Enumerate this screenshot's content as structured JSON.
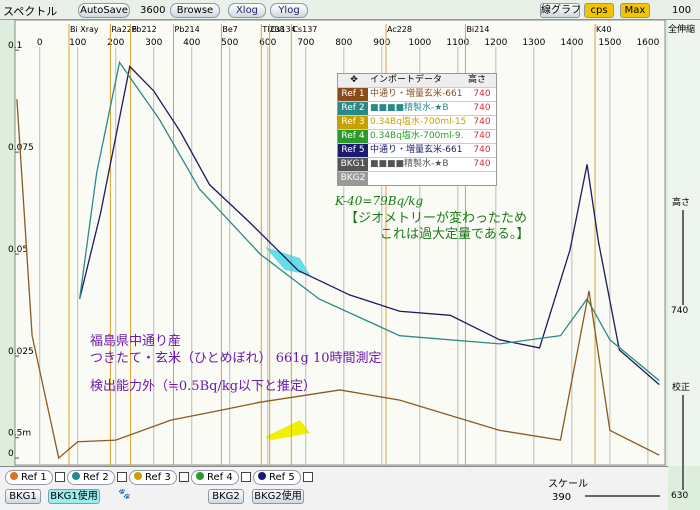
{
  "toolbar": {
    "title": "スペクトル",
    "autosave": "AutoSave",
    "time": 3600,
    "browse": "Browse",
    "xlog": "Xlog",
    "ylog": "Ylog",
    "graph_mode": "線グラフ",
    "unit": "cps",
    "max": "Max",
    "max_value": 100
  },
  "chart": {
    "type": "line",
    "xlim": [
      -65,
      1645
    ],
    "xticks": [
      0,
      100,
      200,
      300,
      400,
      500,
      600,
      700,
      800,
      900,
      1000,
      1100,
      1200,
      1300,
      1400,
      1500,
      1600
    ],
    "ylim": [
      -0.0017,
      0.1074
    ],
    "yticks": [
      0,
      {
        "value": 0.005,
        "label": "0.5m"
      },
      0.025,
      0.05,
      0.075,
      0.1
    ],
    "nuclides": [
      {
        "name": "Bi Xray",
        "energy": 77
      },
      {
        "name": "Ra226",
        "energy": 186
      },
      {
        "name": "Pb212",
        "energy": 239
      },
      {
        "name": "Pb214",
        "energy": 352
      },
      {
        "name": "Be7",
        "energy": 478
      },
      {
        "name": "Tl208",
        "energy": 583
      },
      {
        "name": "Cs134",
        "energy": 605
      },
      {
        "name": "Cs137",
        "energy": 662
      },
      {
        "name": "Ac228",
        "energy": 911
      },
      {
        "name": "Bi214",
        "energy": 1120
      },
      {
        "name": "K40",
        "energy": 1461
      }
    ],
    "series": [
      {
        "color": "#1c1c5e",
        "x": [
          105,
          160,
          237,
          300,
          370,
          447,
          550,
          680,
          815,
          947,
          1080,
          1210,
          1315,
          1395,
          1440,
          1470,
          1525,
          1630
        ],
        "values": [
          0.039,
          0.06,
          0.096,
          0.09,
          0.08,
          0.067,
          0.058,
          0.046,
          0.04,
          0.036,
          0.035,
          0.029,
          0.027,
          0.051,
          0.072,
          0.053,
          0.0265,
          0.018
        ]
      },
      {
        "color": "#2a8a8a",
        "x": [
          105,
          150,
          210,
          315,
          420,
          580,
          735,
          947,
          1210,
          1370,
          1440,
          1500,
          1630
        ],
        "values": [
          0.039,
          0.07,
          0.097,
          0.083,
          0.066,
          0.05,
          0.039,
          0.03,
          0.028,
          0.03,
          0.039,
          0.029,
          0.019
        ]
      },
      {
        "color": "#8a5a20",
        "x": [
          -60,
          -20,
          50,
          100,
          200,
          345,
          475,
          580,
          790,
          947,
          1210,
          1370,
          1445,
          1500,
          1630
        ],
        "values": [
          0.088,
          0.03,
          0.0,
          0.004,
          0.0044,
          0.0093,
          0.0117,
          0.0137,
          0.0167,
          0.0142,
          0.0068,
          0.0044,
          0.041,
          0.0068,
          0.0007
        ]
      }
    ],
    "annotations": {
      "k40": "K-40=79Bq/kg",
      "note1": "【ジオメトリーが変わったため",
      "note2": "これは過大定量である。】",
      "origin": "福島県中通り産",
      "sample": "つきたて・玄米（ひとめぼれ） 661g 10時間測定",
      "limit": "検出能力外（≒0.5Bq/kg以下と推定）"
    }
  },
  "ref_table": {
    "header": [
      "インポートデータ",
      "高さ"
    ],
    "rows": [
      {
        "label": "Ref 1",
        "name": "中通り・増量玄米-661",
        "height": 740
      },
      {
        "label": "Ref 2",
        "name": "■■■■精製水-★B",
        "height": 740
      },
      {
        "label": "Ref 3",
        "name": "0.34Bq塩水-700ml-15",
        "height": 740
      },
      {
        "label": "Ref 4",
        "name": "0.34Bq塩水-700ml-9.",
        "height": 740
      },
      {
        "label": "Ref 5",
        "name": "中通り・増量玄米-661",
        "height": 740
      },
      {
        "label": "BKG1",
        "name": "■■■■精製水-★B",
        "height": 740
      },
      {
        "label": "BKG2"
      }
    ]
  },
  "side_panel": {
    "zoom": "全伸縮",
    "height_label": "高さ",
    "height": 740,
    "calib": "校正",
    "calib_value": 630
  },
  "bottom_bar": {
    "refs": [
      "Ref 1",
      "Ref 2",
      "Ref 3",
      "Ref 4",
      "Ref 5"
    ],
    "bkg1": "BKG1",
    "bkg1_use": "BKG1使用",
    "bkg2": "BKG2",
    "bkg2_use": "BKG2使用",
    "scale_label": "スケール",
    "scale": 390
  }
}
